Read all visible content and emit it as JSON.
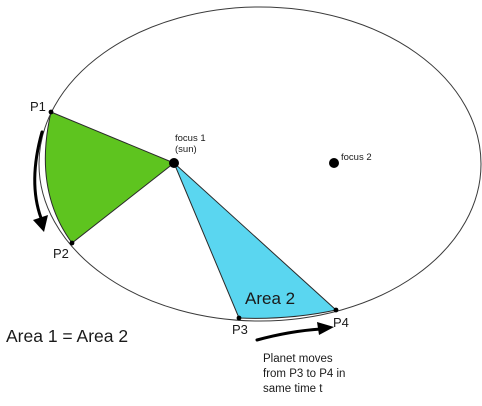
{
  "focus1": {
    "line1": "focus 1",
    "line2": "(sun)"
  },
  "focus2": {
    "label": "focus 2"
  },
  "points": {
    "p1": "P1",
    "p2": "P2",
    "p3": "P3",
    "p4": "P4"
  },
  "area2_label": "Area 2",
  "equation": "Area 1 = Area 2",
  "caption": {
    "line1": "Planet moves",
    "line2": "from P3 to P4 in",
    "line3": "same time t"
  },
  "colors": {
    "area1_fill": "#5ec41f",
    "area2_fill": "#5ad6f0",
    "orbit_stroke": "#3a3a3a",
    "point": "#000000"
  }
}
